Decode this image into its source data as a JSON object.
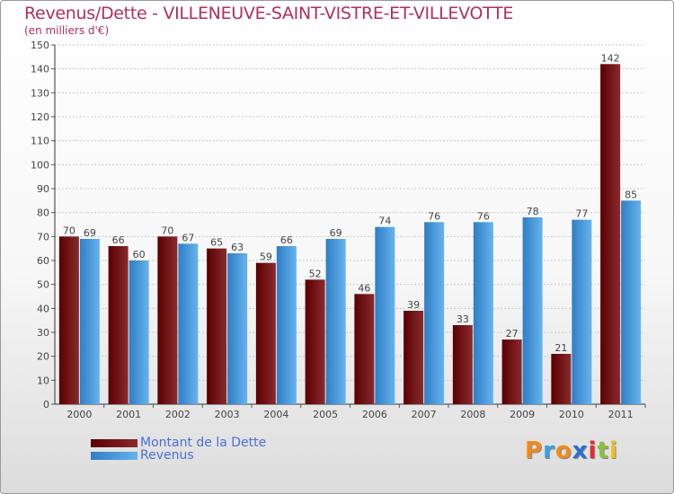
{
  "chart_title": "Revenus/Dette - VILLENEUVE-SAINT-VISTRE-ET-VILLEVOTTE",
  "chart_subtitle": "(en milliers d'€)",
  "legend": {
    "dette_label": "Montant de la Dette",
    "revenus_label": "Revenus"
  },
  "logo_text": "Proxiti",
  "colors": {
    "dette": "#7a1418",
    "revenus": "#3f98dc",
    "title": "#b0305a",
    "legend_text": "#4a6fd6"
  },
  "chart_data": {
    "type": "bar",
    "title": "Revenus/Dette - VILLENEUVE-SAINT-VISTRE-ET-VILLEVOTTE",
    "subtitle": "(en milliers d'€)",
    "categories": [
      "2000",
      "2001",
      "2002",
      "2003",
      "2004",
      "2005",
      "2006",
      "2007",
      "2008",
      "2009",
      "2010",
      "2011"
    ],
    "series": [
      {
        "name": "Montant de la Dette",
        "values": [
          70,
          66,
          70,
          65,
          59,
          52,
          46,
          39,
          33,
          27,
          21,
          142
        ]
      },
      {
        "name": "Revenus",
        "values": [
          69,
          60,
          67,
          63,
          66,
          69,
          74,
          76,
          76,
          78,
          77,
          85
        ]
      }
    ],
    "ylim": [
      0,
      150
    ],
    "yticks": [
      0,
      10,
      20,
      30,
      40,
      50,
      60,
      70,
      80,
      90,
      100,
      110,
      120,
      130,
      140,
      150
    ],
    "grid": true,
    "legend_position": "bottom-left"
  }
}
